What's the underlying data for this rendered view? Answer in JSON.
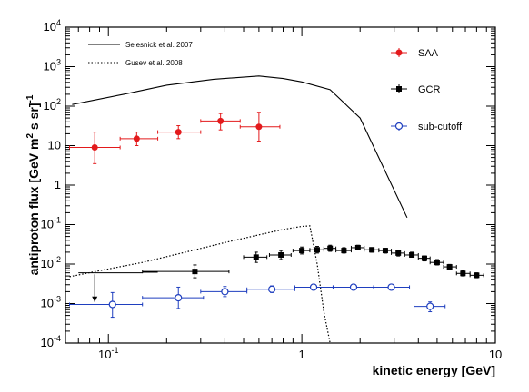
{
  "chart_data": {
    "type": "scatter",
    "xlabel": "kinetic energy [GeV]",
    "ylabel": "antiproton flux [GeV m² s sr]⁻¹",
    "ylabel_main": "antiproton flux [GeV m",
    "ylabel_sup1": "2",
    "ylabel_mid": " s sr]",
    "ylabel_sup2": "-1",
    "x_scale": "log",
    "y_scale": "log",
    "xlim": [
      0.06,
      10
    ],
    "ylim": [
      0.0001,
      10000
    ],
    "x_ticks": [
      {
        "value": 0.1,
        "base": "10",
        "exp": "-1"
      },
      {
        "value": 1,
        "text": "1"
      },
      {
        "value": 10,
        "text": "10"
      }
    ],
    "y_ticks": [
      {
        "value": 0.0001,
        "base": "10",
        "exp": "-4"
      },
      {
        "value": 0.001,
        "base": "10",
        "exp": "-3"
      },
      {
        "value": 0.01,
        "base": "10",
        "exp": "-2"
      },
      {
        "value": 0.1,
        "base": "10",
        "exp": "-1"
      },
      {
        "value": 1,
        "text": "1"
      },
      {
        "value": 10,
        "text": "10"
      },
      {
        "value": 100,
        "base": "10",
        "exp": "2"
      },
      {
        "value": 1000,
        "base": "10",
        "exp": "3"
      },
      {
        "value": 10000,
        "base": "10",
        "exp": "4"
      }
    ],
    "grid": false,
    "legend_placement": "top-right",
    "series": [
      {
        "name": "SAA",
        "kind": "points",
        "marker": "filled-circle",
        "color": "#e31a1c",
        "points": [
          {
            "x": 0.085,
            "y": 9,
            "xlo": 0.063,
            "xhi": 0.115,
            "ylo": 3.5,
            "yhi": 22
          },
          {
            "x": 0.14,
            "y": 15,
            "xlo": 0.115,
            "xhi": 0.18,
            "ylo": 10,
            "yhi": 22
          },
          {
            "x": 0.23,
            "y": 22,
            "xlo": 0.18,
            "xhi": 0.3,
            "ylo": 15,
            "yhi": 32
          },
          {
            "x": 0.38,
            "y": 42,
            "xlo": 0.3,
            "xhi": 0.48,
            "ylo": 25,
            "yhi": 65
          },
          {
            "x": 0.6,
            "y": 30,
            "xlo": 0.48,
            "xhi": 0.77,
            "ylo": 13,
            "yhi": 70
          }
        ]
      },
      {
        "name": "GCR",
        "kind": "points",
        "marker": "filled-square",
        "color": "#000000",
        "points": [
          {
            "x": 0.28,
            "y": 0.0065,
            "xlo": 0.15,
            "xhi": 0.42,
            "ylo": 0.0045,
            "yhi": 0.0095
          },
          {
            "x": 0.58,
            "y": 0.015,
            "xlo": 0.5,
            "xhi": 0.66,
            "ylo": 0.011,
            "yhi": 0.02
          },
          {
            "x": 0.78,
            "y": 0.017,
            "xlo": 0.68,
            "xhi": 0.88,
            "ylo": 0.013,
            "yhi": 0.022
          },
          {
            "x": 1.0,
            "y": 0.022,
            "xlo": 0.9,
            "xhi": 1.1,
            "ylo": 0.018,
            "yhi": 0.027
          },
          {
            "x": 1.2,
            "y": 0.023,
            "xlo": 1.1,
            "xhi": 1.3,
            "ylo": 0.019,
            "yhi": 0.028
          },
          {
            "x": 1.4,
            "y": 0.025,
            "xlo": 1.3,
            "xhi": 1.5,
            "ylo": 0.021,
            "yhi": 0.03
          },
          {
            "x": 1.65,
            "y": 0.022,
            "xlo": 1.5,
            "xhi": 1.8,
            "ylo": 0.019,
            "yhi": 0.026
          },
          {
            "x": 1.95,
            "y": 0.026,
            "xlo": 1.8,
            "xhi": 2.1,
            "ylo": 0.023,
            "yhi": 0.03
          },
          {
            "x": 2.3,
            "y": 0.023,
            "xlo": 2.1,
            "xhi": 2.5,
            "ylo": 0.02,
            "yhi": 0.026
          },
          {
            "x": 2.7,
            "y": 0.022,
            "xlo": 2.5,
            "xhi": 2.9,
            "ylo": 0.019,
            "yhi": 0.025
          },
          {
            "x": 3.15,
            "y": 0.019,
            "xlo": 2.9,
            "xhi": 3.4,
            "ylo": 0.016,
            "yhi": 0.022
          },
          {
            "x": 3.7,
            "y": 0.017,
            "xlo": 3.4,
            "xhi": 4.0,
            "ylo": 0.015,
            "yhi": 0.02
          },
          {
            "x": 4.3,
            "y": 0.014,
            "xlo": 4.0,
            "xhi": 4.6,
            "ylo": 0.012,
            "yhi": 0.016
          },
          {
            "x": 5.0,
            "y": 0.011,
            "xlo": 4.6,
            "xhi": 5.4,
            "ylo": 0.0095,
            "yhi": 0.013
          },
          {
            "x": 5.8,
            "y": 0.0085,
            "xlo": 5.4,
            "xhi": 6.3,
            "ylo": 0.0073,
            "yhi": 0.0098
          },
          {
            "x": 6.8,
            "y": 0.0058,
            "xlo": 6.3,
            "xhi": 7.4,
            "ylo": 0.005,
            "yhi": 0.0068
          },
          {
            "x": 8.0,
            "y": 0.0052,
            "xlo": 7.4,
            "xhi": 8.7,
            "ylo": 0.0045,
            "yhi": 0.006
          }
        ],
        "upper_limits": [
          {
            "x": 0.11,
            "y": 0.006,
            "xlo": 0.07,
            "xhi": 0.15
          },
          {
            "x": 0.16,
            "y": 0.0062,
            "xlo": 0.15,
            "xhi": 0.18
          }
        ],
        "upper_limit_arrow": {
          "x": 0.085,
          "y_from": 0.0055,
          "y_to": 0.0011
        }
      },
      {
        "name": "sub-cutoff",
        "kind": "points",
        "marker": "open-circle",
        "color": "#1f3fbf",
        "points": [
          {
            "x": 0.105,
            "y": 0.00095,
            "xlo": 0.063,
            "xhi": 0.15,
            "ylo": 0.00045,
            "yhi": 0.0019
          },
          {
            "x": 0.23,
            "y": 0.0014,
            "xlo": 0.15,
            "xhi": 0.31,
            "ylo": 0.00075,
            "yhi": 0.0026
          },
          {
            "x": 0.4,
            "y": 0.002,
            "xlo": 0.3,
            "xhi": 0.52,
            "ylo": 0.0015,
            "yhi": 0.0027
          },
          {
            "x": 0.7,
            "y": 0.0023,
            "xlo": 0.52,
            "xhi": 0.92,
            "ylo": 0.0019,
            "yhi": 0.0028
          },
          {
            "x": 1.15,
            "y": 0.0026,
            "xlo": 0.92,
            "xhi": 1.45,
            "ylo": 0.0023,
            "yhi": 0.003
          },
          {
            "x": 1.85,
            "y": 0.0026,
            "xlo": 1.45,
            "xhi": 2.35,
            "ylo": 0.0023,
            "yhi": 0.003
          },
          {
            "x": 2.9,
            "y": 0.0026,
            "xlo": 2.35,
            "xhi": 3.6,
            "ylo": 0.0023,
            "yhi": 0.0029
          },
          {
            "x": 4.6,
            "y": 0.00085,
            "xlo": 3.8,
            "xhi": 5.5,
            "ylo": 0.00062,
            "yhi": 0.0011
          }
        ]
      },
      {
        "name": "Selesnick et al. 2007",
        "kind": "line",
        "style": "solid",
        "color": "#000000",
        "x": [
          0.065,
          0.12,
          0.2,
          0.35,
          0.6,
          0.8,
          1.0,
          1.4,
          2.0,
          3.5
        ],
        "y": [
          110,
          200,
          340,
          480,
          580,
          500,
          410,
          260,
          50,
          0.15
        ]
      },
      {
        "name": "Gusev et al. 2008",
        "kind": "line",
        "style": "dotted",
        "color": "#000000",
        "x": [
          0.063,
          0.1,
          0.15,
          0.25,
          0.4,
          0.6,
          0.8,
          1.0,
          1.1,
          1.2,
          1.3,
          1.4
        ],
        "y": [
          0.0048,
          0.0075,
          0.011,
          0.02,
          0.035,
          0.055,
          0.075,
          0.09,
          0.093,
          0.01,
          0.0006,
          0.0001
        ]
      }
    ]
  }
}
